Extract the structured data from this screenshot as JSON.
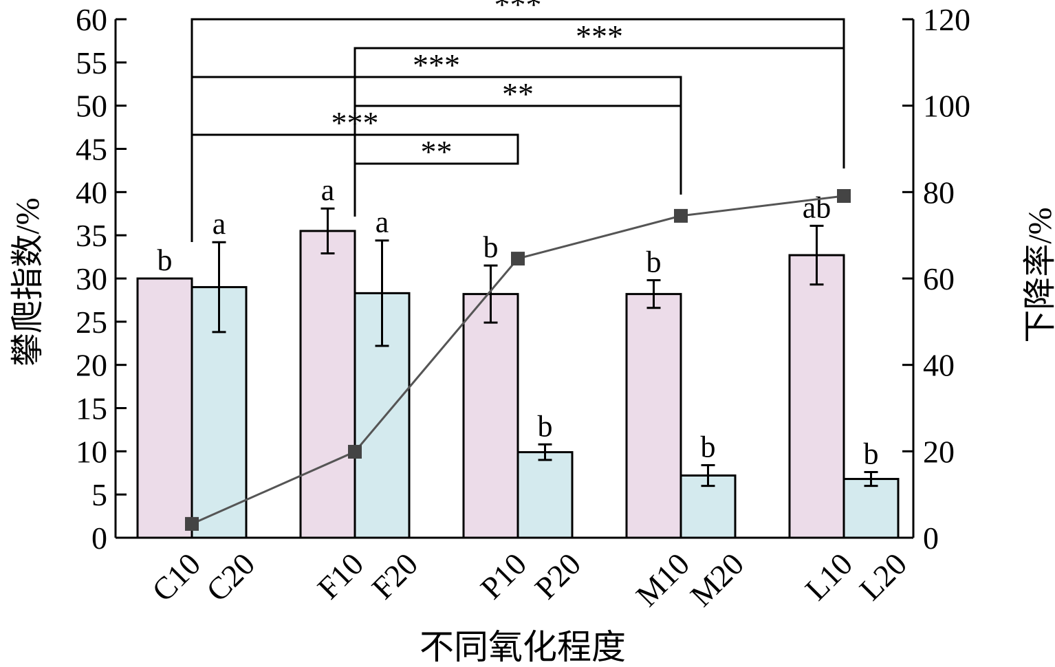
{
  "chart_data": {
    "type": "bar",
    "title": "",
    "xlabel": "不同氧化程度",
    "ylabel": "攀爬指数/%",
    "y2label": "下降率/%",
    "ylim": [
      0,
      60
    ],
    "y2lim": [
      0,
      120
    ],
    "yticks": [
      "0",
      "5",
      "10",
      "15",
      "20",
      "25",
      "30",
      "35",
      "40",
      "45",
      "50",
      "55",
      "60"
    ],
    "y2ticks": [
      "0",
      "20",
      "40",
      "60",
      "80",
      "100",
      "120"
    ],
    "categories": [
      "C10",
      "C20",
      "F10",
      "F20",
      "P10",
      "P20",
      "M10",
      "M20",
      "L10",
      "L20"
    ],
    "groups": [
      [
        "C10",
        "C20"
      ],
      [
        "F10",
        "F20"
      ],
      [
        "P10",
        "P20"
      ],
      [
        "M10",
        "M20"
      ],
      [
        "L10",
        "L20"
      ]
    ],
    "values": [
      30.0,
      29.0,
      35.5,
      28.3,
      28.2,
      9.9,
      28.2,
      7.2,
      32.7,
      6.8
    ],
    "errors": [
      0,
      5.2,
      2.6,
      6.1,
      3.3,
      0.9,
      1.6,
      1.2,
      3.4,
      0.8
    ],
    "letters": [
      "b",
      "a",
      "a",
      "a",
      "b",
      "b",
      "b",
      "b",
      "ab",
      "b"
    ],
    "colors": {
      "d10": "#ecdce9",
      "d20": "#d4eaee",
      "line": "#555555",
      "marker": "#444444"
    },
    "line_series": {
      "name": "下降率",
      "axis": "right",
      "x": [
        "C20",
        "F20",
        "P20",
        "M20",
        "L20"
      ],
      "values": [
        3.2,
        19.9,
        64.6,
        74.5,
        79.1
      ]
    },
    "significance": [
      {
        "from": "C20",
        "to": "L20",
        "label": "***"
      },
      {
        "from": "F20",
        "to": "L20",
        "label": "***"
      },
      {
        "from": "C20",
        "to": "M20",
        "label": "***"
      },
      {
        "from": "F20",
        "to": "M20",
        "label": "**"
      },
      {
        "from": "C20",
        "to": "P20",
        "label": "***"
      },
      {
        "from": "F20",
        "to": "P20",
        "label": "**"
      }
    ]
  }
}
